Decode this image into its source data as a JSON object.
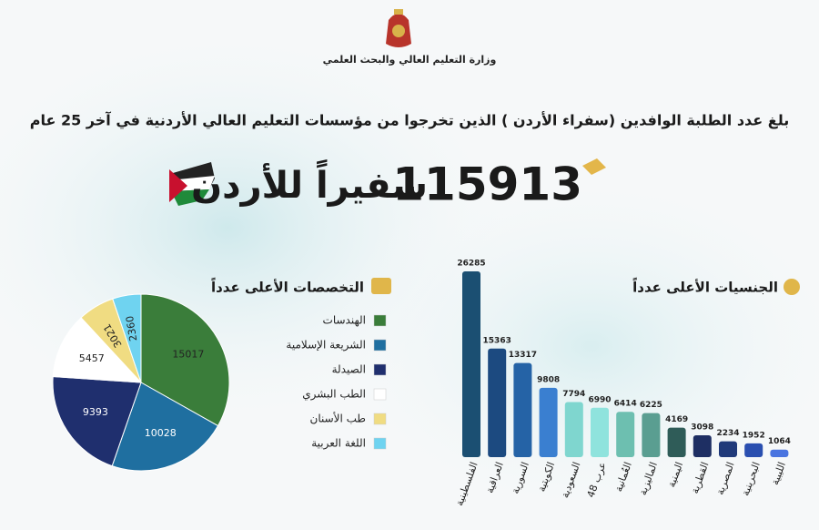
{
  "header": {
    "ministry": "وزارة التعليم العالي والبحث العلمي",
    "headline": "بلغ عدد الطلبة الوافدين (سفراء الأردن ) الذين تخرجوا من مؤسسات التعليم العالي  الأردنية في آخر 25 عام",
    "total": 115913,
    "total_label": "سفيراً للأردن"
  },
  "chart_data": [
    {
      "type": "bar",
      "title": "الجنسيات الأعلى عدداً",
      "categories": [
        "الفلسطينية",
        "العراقية",
        "السورية",
        "الكويتية",
        "السعودية",
        "عرب 48",
        "العُمانية",
        "الماليزية",
        "اليمنية",
        "القطرية",
        "المصرية",
        "البحرينية",
        "الليبية"
      ],
      "values": [
        26285,
        15363,
        13317,
        9808,
        7794,
        6990,
        6414,
        6225,
        4169,
        3098,
        2234,
        1952,
        1064
      ],
      "colors": [
        "#1b4f72",
        "#1c4a80",
        "#2563a6",
        "#3a7fd0",
        "#7fd6cf",
        "#8fe3dd",
        "#6dbfb0",
        "#5a9e91",
        "#2f5c58",
        "#1e2f63",
        "#203a7a",
        "#2a4fb0",
        "#4a74e0"
      ]
    },
    {
      "type": "pie",
      "title": "التخصصات الأعلى عدداً",
      "categories": [
        "الهندسات",
        "الشريعة الإسلامية",
        "الصيدلة",
        "الطب البشري",
        "طب الأسنان",
        "اللغة العربية"
      ],
      "values": [
        15017,
        10028,
        9393,
        5457,
        3021,
        2360
      ],
      "colors": [
        "#3a7d3a",
        "#1f6fa0",
        "#1f2f6e",
        "#ffffff",
        "#f0dc82",
        "#6fd3f0"
      ]
    }
  ]
}
